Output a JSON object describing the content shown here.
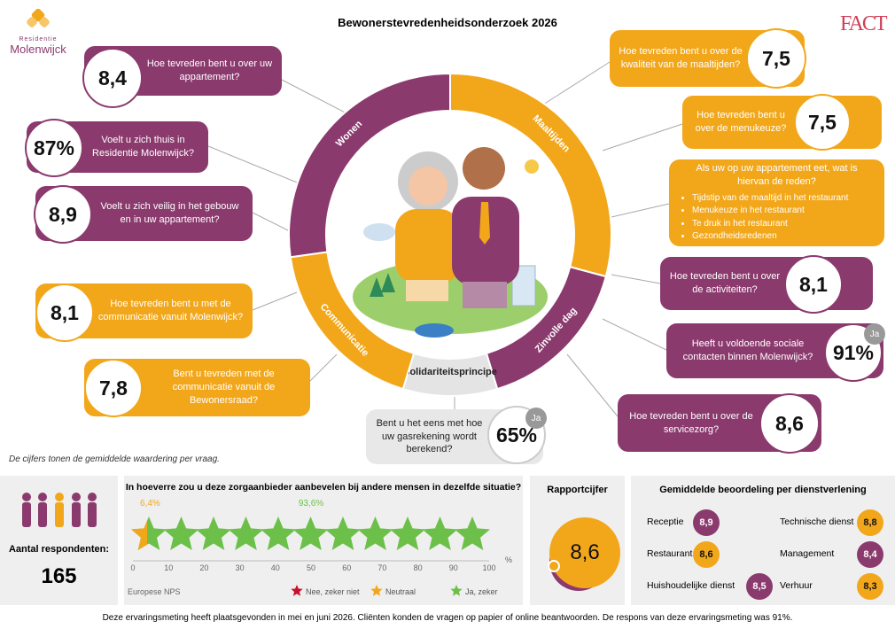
{
  "header": {
    "title": "Bewonerstevredenheidsonderzoek 2026",
    "logo_top": "Residentie",
    "logo_name": "Molenwijck",
    "brand": "FACT"
  },
  "wheel": {
    "segments": [
      "Wonen",
      "Maaltijden",
      "Zinvolle dag",
      "Solidariteitsprincipe",
      "Communicatie"
    ]
  },
  "questions": [
    {
      "text": "Hoe tevreden bent u over uw appartement?",
      "score": "8,4"
    },
    {
      "text": "Voelt u zich thuis in Residentie Molenwijck?",
      "score": "87%"
    },
    {
      "text": "Voelt u zich veilig in het gebouw en in uw appartement?",
      "score": "8,9"
    },
    {
      "text": "Hoe tevreden bent u met de communicatie vanuit Molenwijck?",
      "score": "8,1"
    },
    {
      "text": "Bent u tevreden met de communicatie vanuit de Bewonersraad?",
      "score": "7,8"
    },
    {
      "text": "Hoe tevreden bent u over de kwaliteit van de maaltijden?",
      "score": "7,5"
    },
    {
      "text": "Hoe tevreden bent u over de menukeuze?",
      "score": "7,5"
    },
    {
      "text": "Als uw op uw appartement eet, wat is hiervan de reden?",
      "items": [
        "Tijdstip van de maaltijd in het restaurant",
        "Menukeuze in het restaurant",
        "Te druk in het restaurant",
        "Gezondheidsredenen"
      ]
    },
    {
      "text": "Hoe tevreden bent u over de activiteiten?",
      "score": "8,1"
    },
    {
      "text": "Heeft u voldoende sociale contacten binnen Molenwijck?",
      "score": "91%",
      "badge": "Ja"
    },
    {
      "text": "Hoe tevreden bent u over de servicezorg?",
      "score": "8,6"
    },
    {
      "text": "Bent u het eens met hoe uw gasrekening wordt berekend?",
      "score": "65%",
      "badge": "Ja"
    }
  ],
  "note": "De cijfers tonen de gemiddelde waardering per vraag.",
  "respondents": {
    "label": "Aantal respondenten:",
    "count": 165
  },
  "nps": {
    "question": "In hoeverre zou u deze zorgaanbieder aanbevelen bij andere mensen in dezelfde situatie?",
    "neutral_pct": "6,4%",
    "promoter_pct": "93,6%",
    "ticks": [
      0,
      10,
      20,
      30,
      40,
      50,
      60,
      70,
      80,
      90,
      100
    ],
    "unit": "%",
    "caption": "Europese NPS",
    "legend": [
      {
        "label": "Nee, zeker niet",
        "color": "#c8102e"
      },
      {
        "label": "Neutraal",
        "color": "#f2a71b"
      },
      {
        "label": "Ja, zeker",
        "color": "#6cc04a"
      }
    ]
  },
  "report": {
    "title": "Rapportcijfer",
    "score": "8,6"
  },
  "services": {
    "title": "Gemiddelde beoordeling per dienstverlening",
    "items": [
      {
        "name": "Receptie",
        "score": "8,9",
        "color": "#8b3a6e"
      },
      {
        "name": "Restaurant",
        "score": "8,6",
        "color": "#f2a71b"
      },
      {
        "name": "Huishoudelijke dienst",
        "score": "8,5",
        "color": "#8b3a6e"
      },
      {
        "name": "Technische dienst",
        "score": "8,8",
        "color": "#f2a71b"
      },
      {
        "name": "Management",
        "score": "8,4",
        "color": "#8b3a6e"
      },
      {
        "name": "Verhuur",
        "score": "8,3",
        "color": "#f2a71b"
      }
    ]
  },
  "footer": "Deze ervaringsmeting heeft plaatsgevonden in mei en juni 2026. Cliënten konden de vragen op papier of online beantwoorden. De respons van deze ervaringsmeting was 91%."
}
